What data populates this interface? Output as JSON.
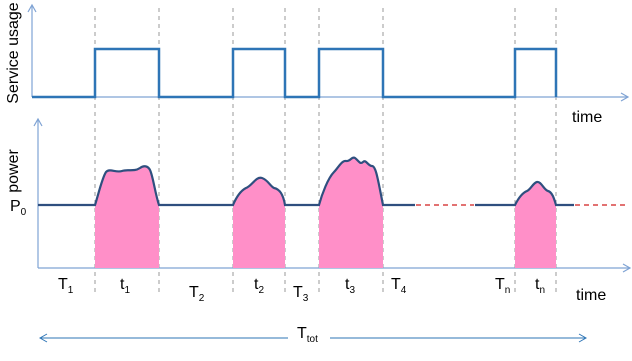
{
  "top_chart": {
    "ylabel": "Service usage",
    "xlabel": "time"
  },
  "bottom_chart": {
    "ylabel": "power",
    "xlabel": "time",
    "baseline_label": {
      "main": "P",
      "sub": "0"
    }
  },
  "interval_labels": [
    {
      "main": "T",
      "sub": "1"
    },
    {
      "main": "t",
      "sub": "1"
    },
    {
      "main": "T",
      "sub": "2"
    },
    {
      "main": "t",
      "sub": "2"
    },
    {
      "main": "T",
      "sub": "3"
    },
    {
      "main": "t",
      "sub": "3"
    },
    {
      "main": "T",
      "sub": "4"
    },
    {
      "main": "T",
      "sub": "n"
    },
    {
      "main": "t",
      "sub": "n"
    }
  ],
  "total_label": {
    "main": "T",
    "sub": "tot"
  },
  "colors": {
    "signal": "#2e75b6",
    "axis": "#7fa3d4",
    "power_line": "#2f4f7f",
    "fill": "#ff8fc8",
    "dashes": "#d11f1f",
    "guides": "#9a9a9a"
  }
}
